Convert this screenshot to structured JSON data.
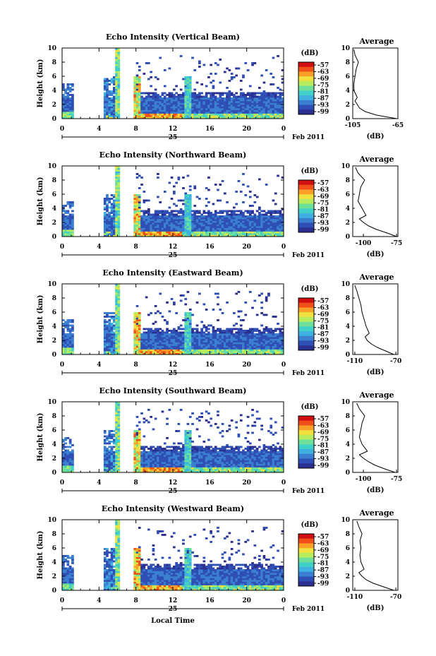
{
  "x_axis": {
    "ticks": [
      "0",
      "4",
      "8",
      "12",
      "16",
      "20",
      "0"
    ],
    "day": "25",
    "month_year": "Feb 2011",
    "label": "Local Time"
  },
  "y_axis": {
    "label": "Height (km)",
    "ticks": [
      "0",
      "2",
      "4",
      "6",
      "8",
      "10"
    ]
  },
  "colorbar": {
    "unit": "(dB)",
    "ticks": [
      "-57",
      "-63",
      "-69",
      "-75",
      "-81",
      "-87",
      "-93",
      "-99"
    ]
  },
  "avg": {
    "title": "Average",
    "unit": "(dB)"
  },
  "chart_data": [
    {
      "type": "heatmap",
      "title": "Echo Intensity (Vertical Beam)",
      "xlabel": "",
      "ylabel": "Height (km)",
      "xlim": [
        0,
        24
      ],
      "ylim": [
        0,
        10
      ],
      "colorbar_label": "(dB)",
      "avg_title": "Average",
      "avg_xlabel": "(dB)",
      "avg_xticks": [
        "-105",
        "-65"
      ],
      "avg_xlim": [
        -105,
        -65
      ],
      "avg_profile": {
        "height_km": [
          0,
          0.5,
          1,
          1.5,
          2,
          2.5,
          3,
          4,
          5,
          6,
          7,
          8,
          9,
          9.8
        ],
        "db": [
          -66,
          -84,
          -94,
          -99,
          -101,
          -103,
          -101,
          -104,
          -104,
          -103,
          -102,
          -100,
          -103,
          -104
        ]
      }
    },
    {
      "type": "heatmap",
      "title": "Echo Intensity (Northward Beam)",
      "xlabel": "",
      "ylabel": "Height (km)",
      "xlim": [
        0,
        24
      ],
      "ylim": [
        0,
        10
      ],
      "colorbar_label": "(dB)",
      "avg_title": "Average",
      "avg_xlabel": "(dB)",
      "avg_xticks": [
        "-100",
        "-75"
      ],
      "avg_xlim": [
        -108,
        -74
      ],
      "avg_profile": {
        "height_km": [
          0,
          0.5,
          1,
          1.5,
          2,
          2.5,
          3,
          4,
          5,
          6,
          7,
          8,
          9,
          9.8
        ],
        "db": [
          -75,
          -82,
          -90,
          -96,
          -100,
          -103,
          -98,
          -101,
          -104,
          -103,
          -102,
          -99,
          -104,
          -106
        ]
      }
    },
    {
      "type": "heatmap",
      "title": "Echo Intensity (Eastward Beam)",
      "xlabel": "",
      "ylabel": "Height (km)",
      "xlim": [
        0,
        24
      ],
      "ylim": [
        0,
        10
      ],
      "colorbar_label": "(dB)",
      "avg_title": "Average",
      "avg_xlabel": "(dB)",
      "avg_xticks": [
        "-110",
        "-70"
      ],
      "avg_xlim": [
        -112,
        -68
      ],
      "avg_profile": {
        "height_km": [
          0,
          0.5,
          1,
          1.5,
          2,
          2.5,
          3,
          4,
          5,
          6,
          7,
          8,
          9,
          9.8
        ],
        "db": [
          -72,
          -80,
          -88,
          -94,
          -98,
          -100,
          -96,
          -99,
          -101,
          -103,
          -104,
          -106,
          -108,
          -110
        ]
      }
    },
    {
      "type": "heatmap",
      "title": "Echo Intensity (Southward Beam)",
      "xlabel": "",
      "ylabel": "Height (km)",
      "xlim": [
        0,
        24
      ],
      "ylim": [
        0,
        10
      ],
      "colorbar_label": "(dB)",
      "avg_title": "Average",
      "avg_xlabel": "(dB)",
      "avg_xticks": [
        "-100",
        "-75"
      ],
      "avg_xlim": [
        -108,
        -74
      ],
      "avg_profile": {
        "height_km": [
          0,
          0.5,
          1,
          1.5,
          2,
          2.5,
          3,
          4,
          5,
          6,
          7,
          8,
          9,
          9.8
        ],
        "db": [
          -76,
          -84,
          -91,
          -96,
          -100,
          -103,
          -97,
          -101,
          -103,
          -102,
          -101,
          -99,
          -103,
          -105
        ]
      }
    },
    {
      "type": "heatmap",
      "title": "Echo Intensity (Westward Beam)",
      "xlabel": "Local Time",
      "ylabel": "Height (km)",
      "xlim": [
        0,
        24
      ],
      "ylim": [
        0,
        10
      ],
      "colorbar_label": "(dB)",
      "avg_title": "Average",
      "avg_xlabel": "(dB)",
      "avg_xticks": [
        "-110",
        "-70"
      ],
      "avg_xlim": [
        -112,
        -68
      ],
      "avg_profile": {
        "height_km": [
          0,
          0.5,
          1,
          1.5,
          2,
          2.5,
          3,
          4,
          5,
          6,
          7,
          8,
          9,
          9.8
        ],
        "db": [
          -72,
          -82,
          -92,
          -99,
          -103,
          -106,
          -101,
          -104,
          -105,
          -104,
          -105,
          -103,
          -106,
          -108
        ]
      }
    }
  ],
  "colors": {
    "scale": [
      "#2b2f8f",
      "#2f4fb5",
      "#3a7fd0",
      "#3fb0e0",
      "#40d0c8",
      "#6fe09a",
      "#b8ec5f",
      "#f0e040",
      "#f8a028",
      "#f05018",
      "#d01010"
    ],
    "axis": "#000000"
  }
}
